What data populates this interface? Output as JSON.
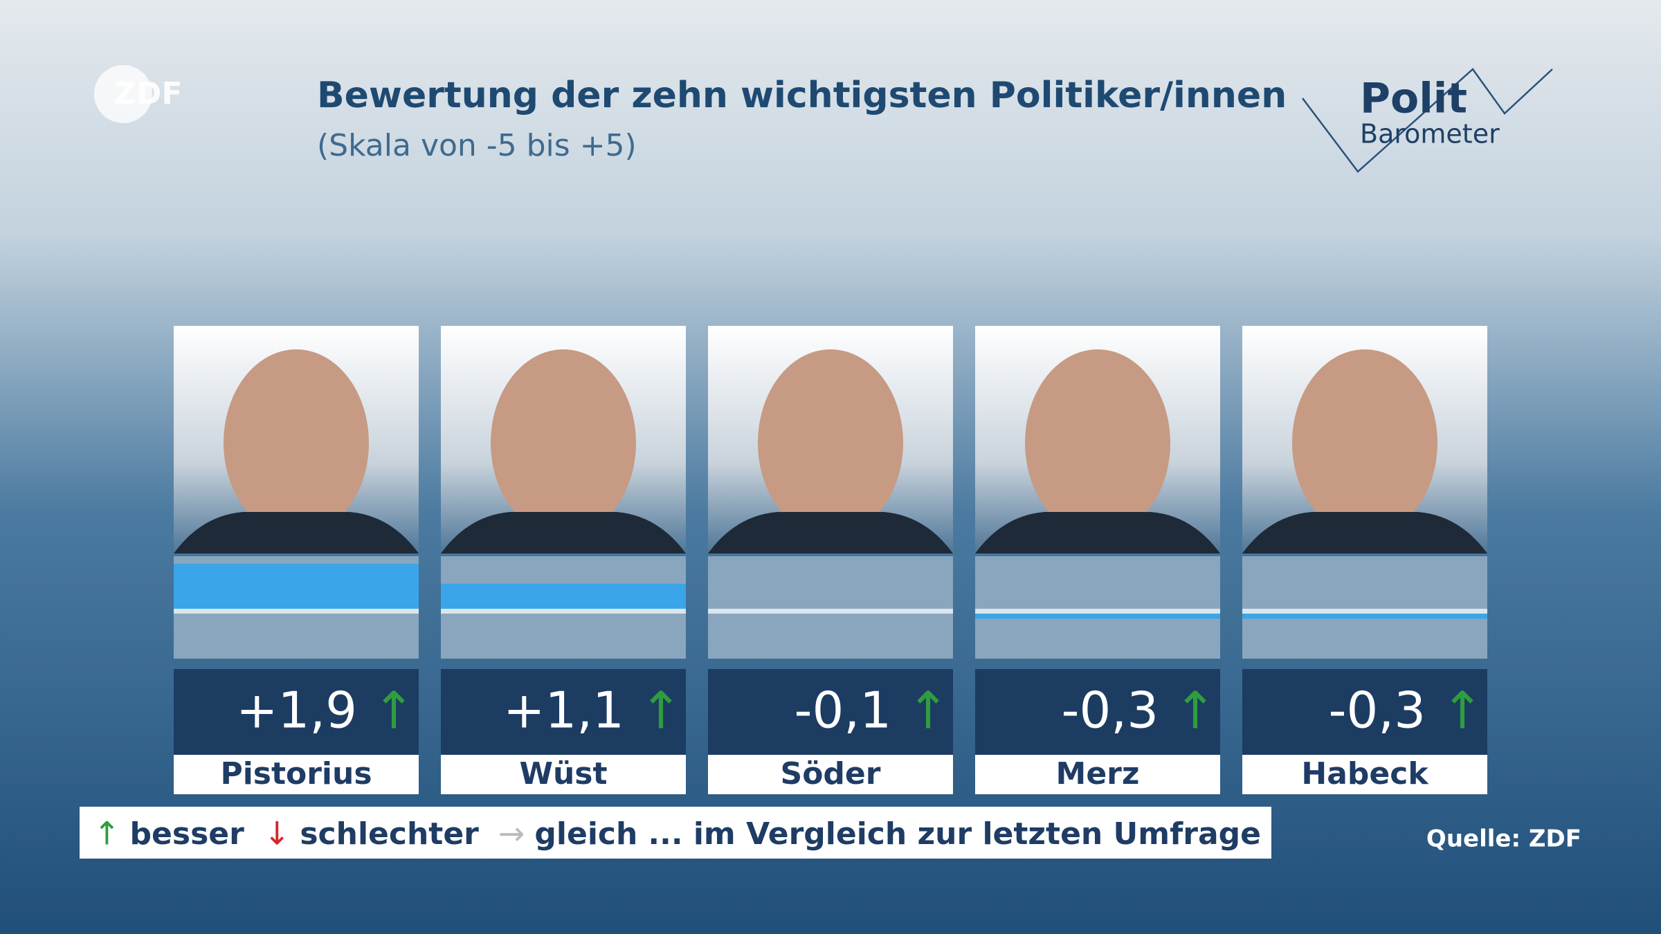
{
  "header": {
    "logo": "ZDF",
    "title": "Bewertung der zehn wichtigsten Politiker/innen",
    "subtitle": "(Skala von -5 bis +5)",
    "brand": [
      "Polit",
      "Barometer"
    ]
  },
  "chart_data": {
    "type": "bar",
    "categories": [
      "Pistorius",
      "Wüst",
      "Söder",
      "Merz",
      "Habeck"
    ],
    "values": [
      1.9,
      1.1,
      -0.1,
      -0.3,
      -0.3
    ],
    "value_labels": [
      "+1,9",
      "+1,1",
      "-0,1",
      "-0,3",
      "-0,3"
    ],
    "trends": [
      "↑",
      "↑",
      "↑",
      "↑",
      "↑"
    ],
    "trend_color": "#2f9d3f",
    "color": "#3aa5e8",
    "ylim": [
      -1.9,
      2.2
    ]
  },
  "legend": {
    "items": [
      {
        "symbol": "↑",
        "label": "besser",
        "color": "#2f9d3f"
      },
      {
        "symbol": "↓",
        "label": "schlechter",
        "color": "#d7262b"
      },
      {
        "symbol": "→",
        "label": "gleich",
        "color": "#b8bcc0"
      }
    ],
    "note": "... im Vergleich zur letzten Umfrage"
  },
  "source": "Quelle: ZDF"
}
